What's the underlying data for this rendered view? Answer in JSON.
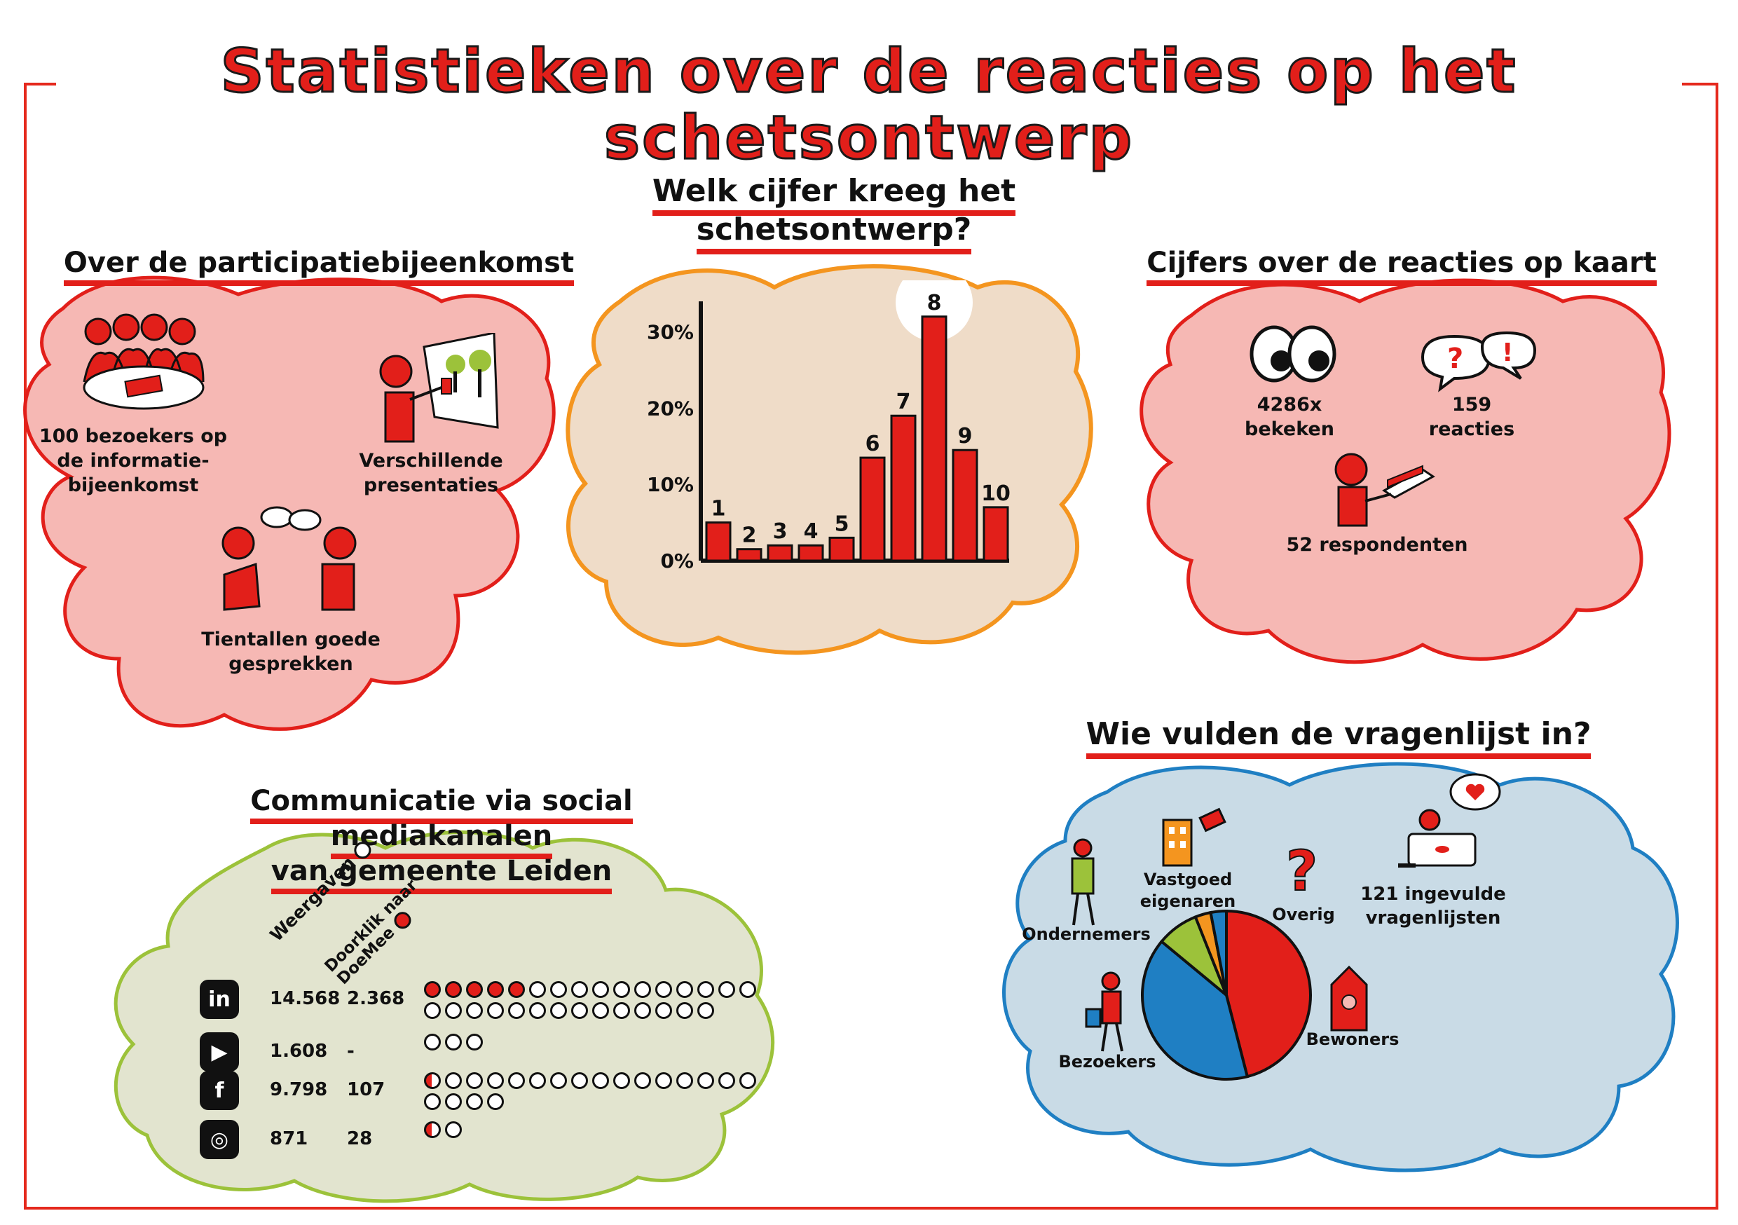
{
  "title": "Statistieken over de reacties op het schetsontwerp",
  "colors": {
    "red": "#e21f1a",
    "pink": "#f6b8b4",
    "beige": "#efdcc8",
    "orange": "#f4951f",
    "olive": "#e2e4cf",
    "green": "#9cc23a",
    "blue": "#c9dbe6",
    "blue_border": "#1f7fc3"
  },
  "participation": {
    "title": "Over de participatiebijeenkomst",
    "visitors": "100 bezoekers op de informatie-bijeenkomst",
    "presentations": "Verschillende presentaties",
    "conversations": "Tientallen goede gesprekken"
  },
  "grade": {
    "title_line1": "Welk cijfer kreeg het",
    "title_line2": "schetsontwerp?"
  },
  "chart_data": {
    "type": "bar",
    "categories": [
      "1",
      "2",
      "3",
      "4",
      "5",
      "6",
      "7",
      "8",
      "9",
      "10"
    ],
    "values": [
      5,
      1.5,
      2,
      2,
      3,
      13.5,
      19,
      32,
      14.5,
      7
    ],
    "yticks": [
      "0%",
      "10%",
      "20%",
      "30%"
    ],
    "ylim": [
      0,
      34
    ],
    "highlight": "8"
  },
  "map_reactions": {
    "title": "Cijfers over de reacties op kaart",
    "views": "4286x bekeken",
    "reactions": "159 reacties",
    "respondents": "52 respondenten",
    "icon_eyes": "eyes-icon",
    "icon_bubbles": "speech-bubbles-icon",
    "icon_laptop": "person-laptop-icon"
  },
  "social": {
    "title_line1": "Communicatie via social  mediakanalen",
    "title_line2": "van gemeente Leiden",
    "col_views": "Weergaven",
    "col_click": "Doorklik naar DoeMee",
    "rows": [
      {
        "icon": "linkedin-icon",
        "glyph": "in",
        "views": "14.568",
        "clicks": "2.368",
        "dots_red": 5,
        "dots_white": 25
      },
      {
        "icon": "youtube-icon",
        "glyph": "▶",
        "views": "1.608",
        "clicks": "-",
        "dots_red": 0,
        "dots_white": 3
      },
      {
        "icon": "facebook-icon",
        "glyph": "f",
        "views": "9.798",
        "clicks": "107",
        "dots_half": 1,
        "dots_white": 19
      },
      {
        "icon": "instagram-icon",
        "glyph": "◎",
        "views": "871",
        "clicks": "28",
        "dots_half": 1,
        "dots_white": 1
      }
    ]
  },
  "questionnaire": {
    "title": "Wie vulden de vragenlijst in?",
    "filled": "121 ingevulde vragenlijsten",
    "segments": [
      {
        "label": "Bewoners",
        "value": 46,
        "color": "#e21f1a"
      },
      {
        "label": "Bezoekers",
        "value": 40,
        "color": "#1f7fc3"
      },
      {
        "label": "Ondernemers",
        "value": 8,
        "color": "#9cc23a"
      },
      {
        "label": "Vastgoed eigenaren",
        "value": 3,
        "color": "#f4951f"
      },
      {
        "label": "Overig",
        "value": 3,
        "color": "#1f7fc3"
      }
    ]
  }
}
